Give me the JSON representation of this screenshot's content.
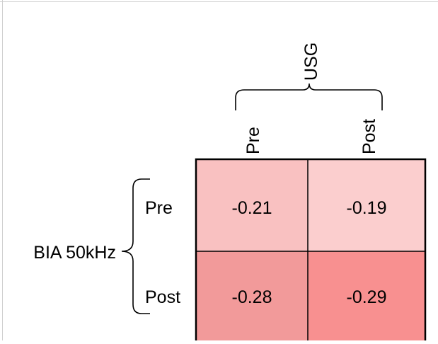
{
  "chart_data": {
    "type": "heatmap",
    "title": "",
    "column_group_label": "USG",
    "row_group_label": "BIA 50kHz",
    "columns": [
      "Pre",
      "Post"
    ],
    "rows": [
      "Pre",
      "Post"
    ],
    "cells": [
      [
        {
          "value": -0.21,
          "label": "-0.21"
        },
        {
          "value": -0.19,
          "label": "-0.19"
        }
      ],
      [
        {
          "value": -0.28,
          "label": "-0.28"
        },
        {
          "value": -0.29,
          "label": "-0.29"
        }
      ]
    ],
    "colors": {
      "cell_colors": [
        [
          "#f9c1c1",
          "#fbcece"
        ],
        [
          "#f29a9a",
          "#f89090"
        ]
      ],
      "border": "#000000",
      "frame_top_line": "#cfcfcf"
    }
  }
}
